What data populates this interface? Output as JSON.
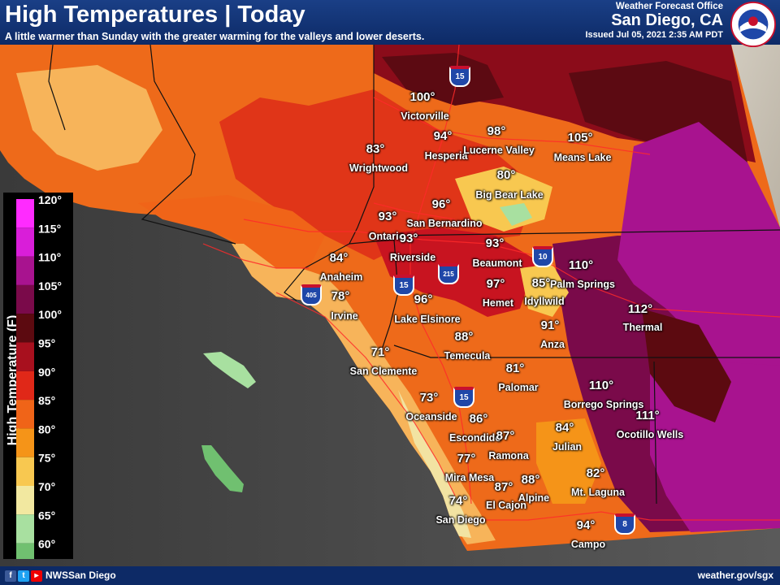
{
  "header": {
    "title": "High Temperatures | Today",
    "subtitle": "A little warmer than Sunday with the greater warming for the valleys and lower deserts.",
    "office_label": "Weather Forecast Office",
    "office_city": "San Diego, CA",
    "issued": "Issued Jul 05, 2021 2:35 AM PDT",
    "logo_text": "NATIONAL WEATHER SERVICE"
  },
  "legend": {
    "title": "High Temperature (F)",
    "stops": [
      {
        "label": "120°",
        "color": "#ff2bff"
      },
      {
        "label": "115°",
        "color": "#d91ed9"
      },
      {
        "label": "110°",
        "color": "#a8138f"
      },
      {
        "label": "105°",
        "color": "#7a0a4a"
      },
      {
        "label": "100°",
        "color": "#5c0a10"
      },
      {
        "label": "95°",
        "color": "#a8101e"
      },
      {
        "label": "90°",
        "color": "#e02818"
      },
      {
        "label": "85°",
        "color": "#f06418"
      },
      {
        "label": "80°",
        "color": "#f59418"
      },
      {
        "label": "75°",
        "color": "#f8c850"
      },
      {
        "label": "70°",
        "color": "#f2e8a0"
      },
      {
        "label": "65°",
        "color": "#a8e0a0"
      },
      {
        "label": "60°",
        "color": "#70c070"
      }
    ]
  },
  "forecasts": [
    {
      "temp": "100°",
      "city": "Victorville"
    },
    {
      "temp": "94°",
      "city": "Hesperia"
    },
    {
      "temp": "98°",
      "city": "Lucerne Valley"
    },
    {
      "temp": "105°",
      "city": "Means Lake"
    },
    {
      "temp": "83°",
      "city": "Wrightwood"
    },
    {
      "temp": "80°",
      "city": "Big Bear Lake"
    },
    {
      "temp": "96°",
      "city": "San Bernardino"
    },
    {
      "temp": "93°",
      "city": "Ontario"
    },
    {
      "temp": "93°",
      "city": "Riverside"
    },
    {
      "temp": "93°",
      "city": "Beaumont"
    },
    {
      "temp": "84°",
      "city": "Anaheim"
    },
    {
      "temp": "110°",
      "city": "Palm Springs"
    },
    {
      "temp": "78°",
      "city": "Irvine"
    },
    {
      "temp": "97°",
      "city": "Hemet"
    },
    {
      "temp": "85°",
      "city": "Idyllwild"
    },
    {
      "temp": "96°",
      "city": "Lake Elsinore"
    },
    {
      "temp": "112°",
      "city": "Thermal"
    },
    {
      "temp": "91°",
      "city": "Anza"
    },
    {
      "temp": "88°",
      "city": "Temecula"
    },
    {
      "temp": "71°",
      "city": "San Clemente"
    },
    {
      "temp": "81°",
      "city": "Palomar"
    },
    {
      "temp": "110°",
      "city": "Borrego Springs"
    },
    {
      "temp": "73°",
      "city": "Oceanside"
    },
    {
      "temp": "86°",
      "city": "Escondido"
    },
    {
      "temp": "87°",
      "city": "Ramona"
    },
    {
      "temp": "84°",
      "city": "Julian"
    },
    {
      "temp": "111°",
      "city": "Ocotillo Wells"
    },
    {
      "temp": "77°",
      "city": "Mira Mesa"
    },
    {
      "temp": "82°",
      "city": "Mt. Laguna"
    },
    {
      "temp": "88°",
      "city": "Alpine"
    },
    {
      "temp": "87°",
      "city": "El Cajon"
    },
    {
      "temp": "74°",
      "city": "San Diego"
    },
    {
      "temp": "94°",
      "city": "Campo"
    }
  ],
  "highways": [
    "15",
    "10",
    "215",
    "15",
    "405",
    "15",
    "8"
  ],
  "footer": {
    "social_handle": "NWSSan Diego",
    "website": "weather.gov/sgx"
  }
}
